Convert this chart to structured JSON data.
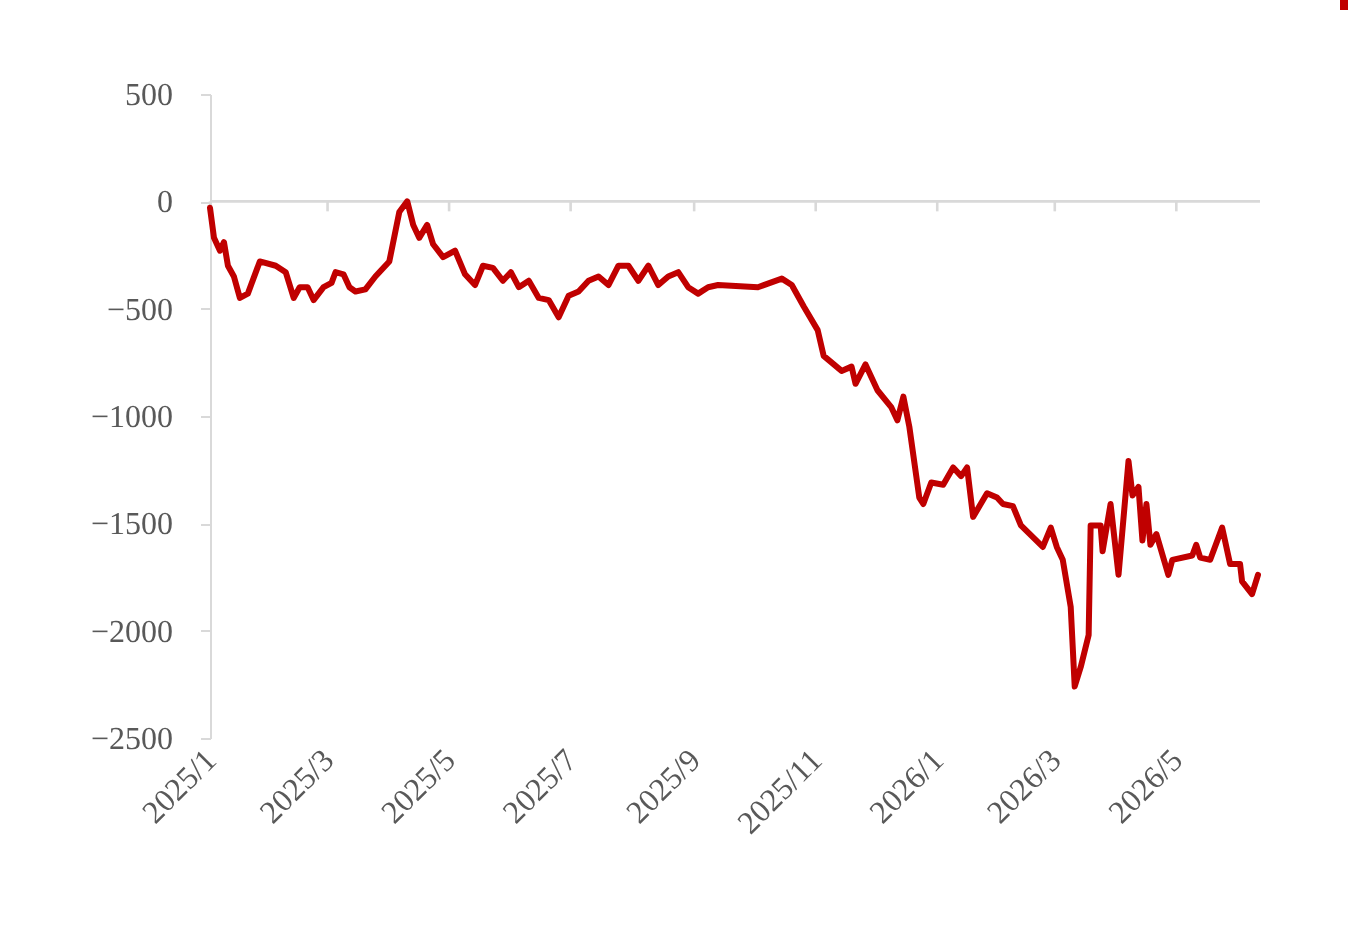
{
  "chart_data": {
    "type": "line",
    "x": [
      "2025-01-01",
      "2025-01-03",
      "2025-01-06",
      "2025-01-08",
      "2025-01-10",
      "2025-01-13",
      "2025-01-16",
      "2025-01-20",
      "2025-01-26",
      "2025-02-03",
      "2025-02-08",
      "2025-02-12",
      "2025-02-15",
      "2025-02-19",
      "2025-02-22",
      "2025-02-27",
      "2025-03-03",
      "2025-03-05",
      "2025-03-09",
      "2025-03-12",
      "2025-03-15",
      "2025-03-20",
      "2025-03-25",
      "2025-04-01",
      "2025-04-06",
      "2025-04-10",
      "2025-04-13",
      "2025-04-16",
      "2025-04-20",
      "2025-04-23",
      "2025-04-28",
      "2025-05-04",
      "2025-05-09",
      "2025-05-14",
      "2025-05-18",
      "2025-05-23",
      "2025-05-28",
      "2025-06-01",
      "2025-06-05",
      "2025-06-10",
      "2025-06-15",
      "2025-06-20",
      "2025-06-25",
      "2025-06-30",
      "2025-07-05",
      "2025-07-10",
      "2025-07-15",
      "2025-07-20",
      "2025-07-25",
      "2025-07-30",
      "2025-08-04",
      "2025-08-09",
      "2025-08-14",
      "2025-08-19",
      "2025-08-24",
      "2025-08-29",
      "2025-09-03",
      "2025-09-08",
      "2025-09-13",
      "2025-10-03",
      "2025-10-15",
      "2025-10-20",
      "2025-10-26",
      "2025-11-02",
      "2025-11-05",
      "2025-11-14",
      "2025-11-19",
      "2025-11-21",
      "2025-11-26",
      "2025-12-02",
      "2025-12-09",
      "2025-12-12",
      "2025-12-15",
      "2025-12-18",
      "2025-12-23",
      "2025-12-25",
      "2025-12-29",
      "2026-01-04",
      "2026-01-09",
      "2026-01-13",
      "2026-01-16",
      "2026-01-19",
      "2026-01-26",
      "2026-01-31",
      "2026-02-03",
      "2026-02-08",
      "2026-02-12",
      "2026-02-23",
      "2026-02-27",
      "2026-03-02",
      "2026-03-05",
      "2026-03-09",
      "2026-03-11",
      "2026-03-14",
      "2026-03-18",
      "2026-03-19",
      "2026-03-24",
      "2026-03-25",
      "2026-03-29",
      "2026-04-02",
      "2026-04-07",
      "2026-04-09",
      "2026-04-12",
      "2026-04-14",
      "2026-04-16",
      "2026-04-18",
      "2026-04-21",
      "2026-04-27",
      "2026-04-29",
      "2026-05-09",
      "2026-05-11",
      "2026-05-13",
      "2026-05-18",
      "2026-05-24",
      "2026-05-28",
      "2026-06-02",
      "2026-06-03",
      "2026-06-08",
      "2026-06-11"
    ],
    "series": [
      {
        "color": "#c00000",
        "values": [
          -30,
          -170,
          -230,
          -190,
          -300,
          -350,
          -450,
          -430,
          -280,
          -300,
          -330,
          -450,
          -400,
          -400,
          -460,
          -400,
          -380,
          -330,
          -340,
          -400,
          -420,
          -410,
          -350,
          -280,
          -50,
          0,
          -110,
          -170,
          -110,
          -200,
          -260,
          -230,
          -340,
          -390,
          -300,
          -310,
          -370,
          -330,
          -400,
          -370,
          -450,
          -460,
          -540,
          -440,
          -420,
          -370,
          -350,
          -390,
          -300,
          -300,
          -370,
          -300,
          -390,
          -350,
          -330,
          -400,
          -430,
          -400,
          -390,
          -400,
          -360,
          -390,
          -490,
          -600,
          -720,
          -790,
          -770,
          -850,
          -760,
          -880,
          -960,
          -1020,
          -910,
          -1050,
          -1380,
          -1410,
          -1310,
          -1320,
          -1240,
          -1280,
          -1240,
          -1470,
          -1360,
          -1380,
          -1410,
          -1420,
          -1510,
          -1610,
          -1520,
          -1610,
          -1670,
          -1890,
          -2260,
          -2170,
          -2020,
          -1510,
          -1510,
          -1630,
          -1410,
          -1740,
          -1210,
          -1370,
          -1330,
          -1580,
          -1410,
          -1600,
          -1550,
          -1740,
          -1670,
          -1650,
          -1600,
          -1660,
          -1670,
          -1520,
          -1690,
          -1690,
          -1770,
          -1830,
          -1740
        ]
      }
    ],
    "xlim": [
      "2025-01-01",
      "2026-06-12"
    ],
    "xticks": [
      {
        "value": "2025-01-01",
        "label": "2025/1"
      },
      {
        "value": "2025-03-01",
        "label": "2025/3"
      },
      {
        "value": "2025-05-01",
        "label": "2025/5"
      },
      {
        "value": "2025-07-01",
        "label": "2025/7"
      },
      {
        "value": "2025-09-01",
        "label": "2025/9"
      },
      {
        "value": "2025-11-01",
        "label": "2025/11"
      },
      {
        "value": "2026-01-01",
        "label": "2026/1"
      },
      {
        "value": "2026-03-01",
        "label": "2026/3"
      },
      {
        "value": "2026-05-01",
        "label": "2026/5"
      }
    ],
    "ylim": [
      -2500,
      500
    ],
    "yticks": [
      -2500,
      -2000,
      -1500,
      -1000,
      -500,
      0,
      500
    ],
    "marker": "none",
    "line_style": "solid"
  }
}
